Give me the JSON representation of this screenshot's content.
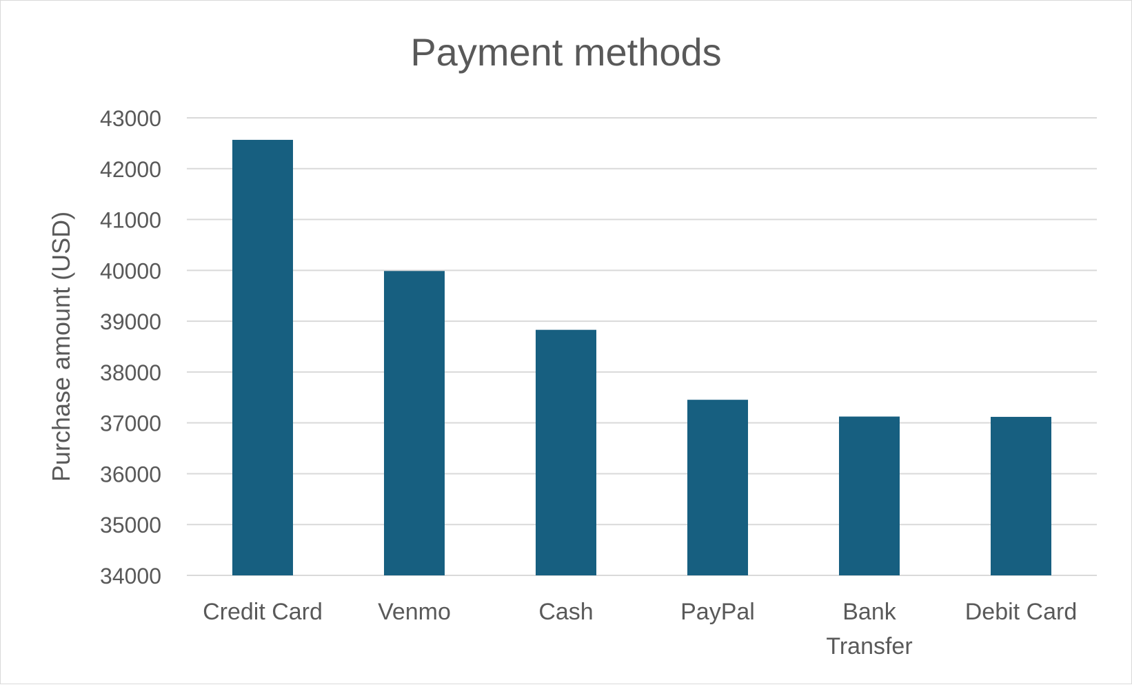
{
  "chart_data": {
    "type": "bar",
    "title": "Payment methods",
    "xlabel": "",
    "ylabel": "Purchase amount (USD)",
    "categories": [
      "Credit Card",
      "Venmo",
      "Cash",
      "PayPal",
      "Bank Transfer",
      "Debit Card"
    ],
    "category_lines": [
      [
        "Credit Card"
      ],
      [
        "Venmo"
      ],
      [
        "Cash"
      ],
      [
        "PayPal"
      ],
      [
        "Bank",
        "Transfer"
      ],
      [
        "Debit Card"
      ]
    ],
    "values": [
      42567,
      39987,
      38830,
      37454,
      37124,
      37118
    ],
    "ylim": [
      34000,
      43000
    ],
    "yticks": [
      "34000",
      "35000",
      "36000",
      "37000",
      "38000",
      "39000",
      "40000",
      "41000",
      "42000",
      "43000"
    ],
    "grid": true,
    "legend": "none",
    "bar_color": "#175f80",
    "grid_color": "#d9d9d9",
    "text_color": "#595959"
  }
}
